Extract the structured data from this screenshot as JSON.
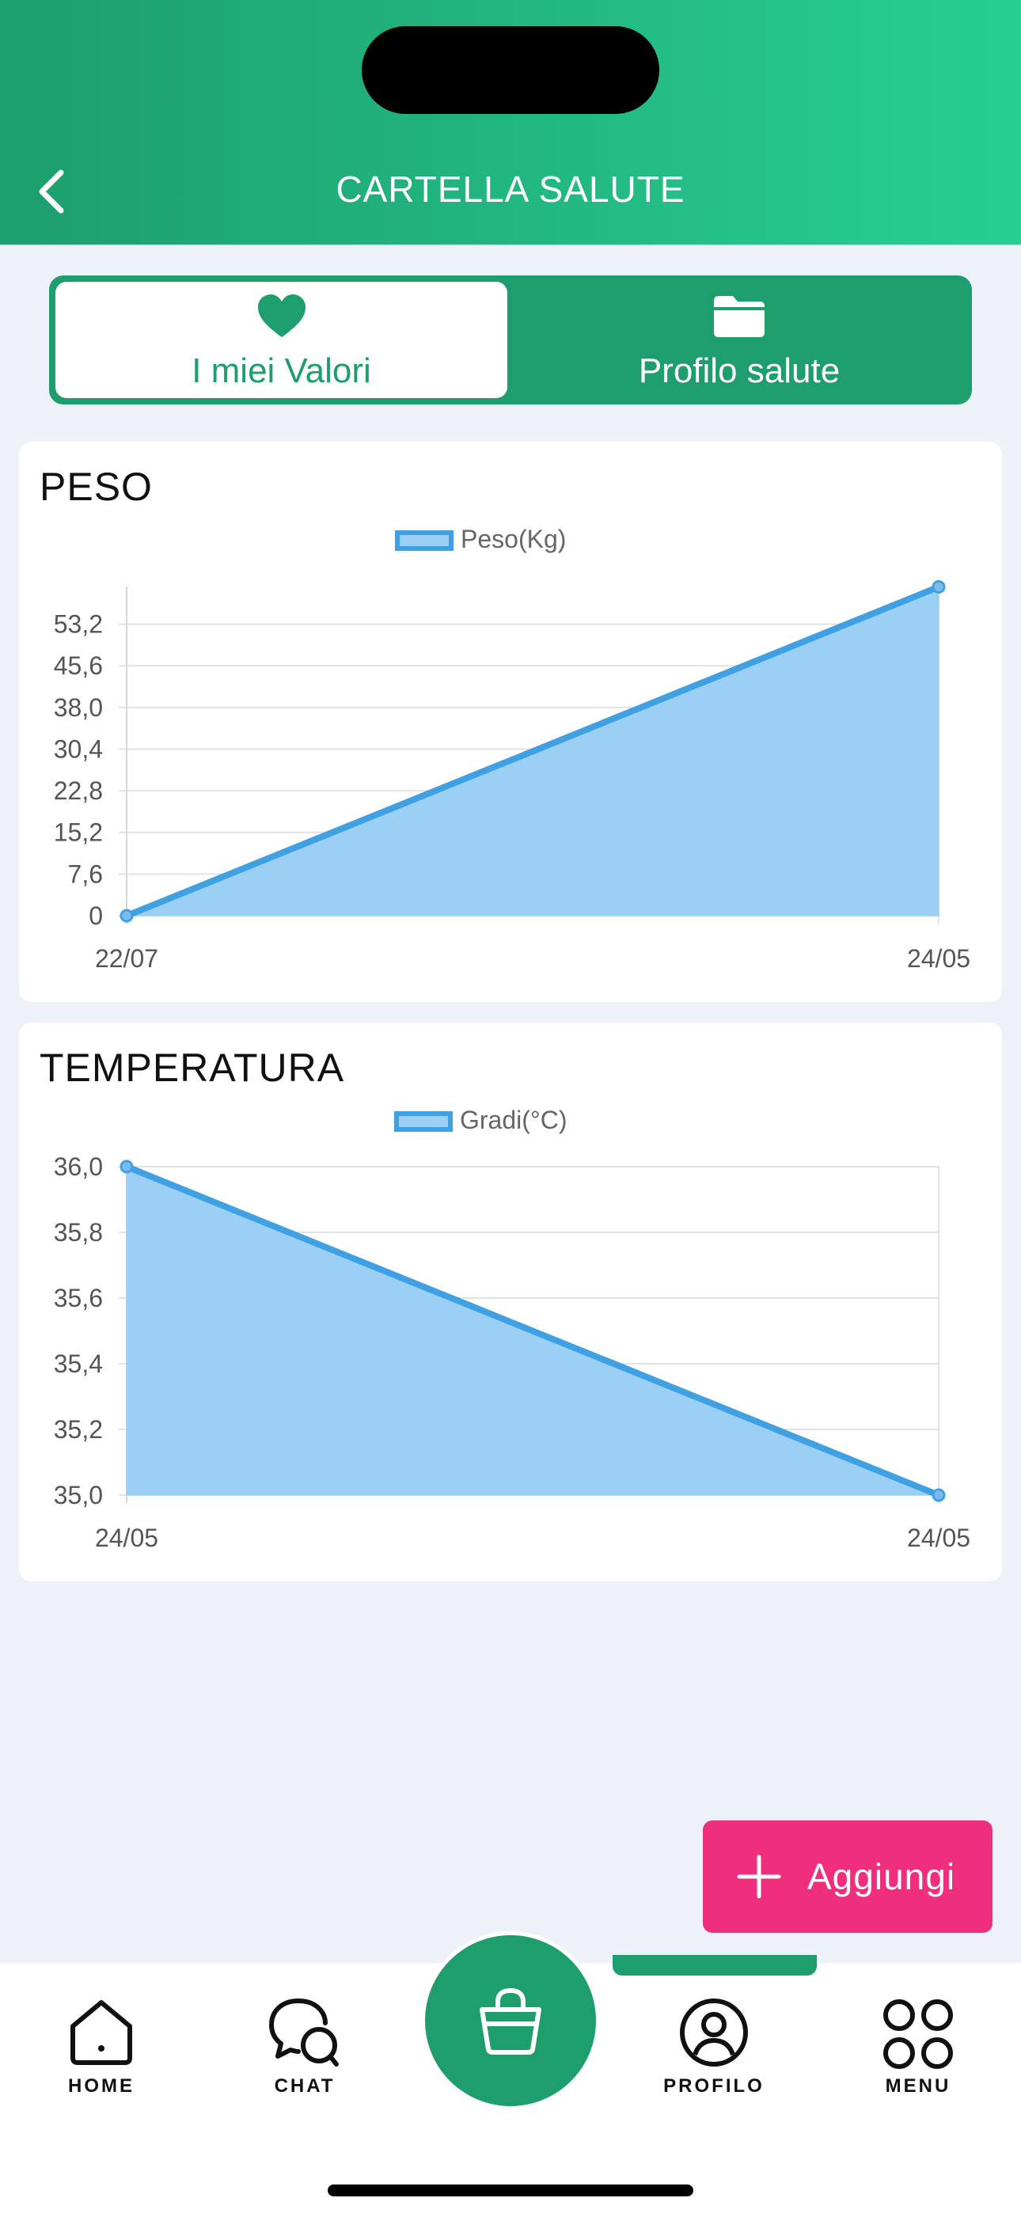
{
  "header": {
    "title": "CARTELLA SALUTE"
  },
  "segments": [
    {
      "label": "I miei Valori",
      "icon": "heart-icon",
      "active": true
    },
    {
      "label": "Profilo salute",
      "icon": "folder-icon",
      "active": false
    }
  ],
  "colors": {
    "brand_green": "#1e9e6c",
    "accent_pink": "#ef2f7d",
    "series_line": "#3fa0e4",
    "series_fill": "#9bcff3"
  },
  "cards": {
    "peso": {
      "title": "PESO"
    },
    "temperatura": {
      "title": "TEMPERATURA"
    }
  },
  "chart_data": [
    {
      "type": "area",
      "title": "PESO",
      "x": [
        "22/07",
        "24/05"
      ],
      "series": [
        {
          "name": "Peso(Kg)",
          "values": [
            0,
            60
          ]
        }
      ],
      "yticks": [
        "0",
        "7,6",
        "15,2",
        "22,8",
        "30,4",
        "38,0",
        "45,6",
        "53,2"
      ],
      "ylim": [
        0,
        60
      ],
      "legend": "top-center",
      "grid": true
    },
    {
      "type": "area",
      "title": "TEMPERATURA",
      "x": [
        "24/05",
        "24/05"
      ],
      "series": [
        {
          "name": "Gradi(°C)",
          "values": [
            36.0,
            35.0
          ]
        }
      ],
      "yticks": [
        "35,0",
        "35,2",
        "35,4",
        "35,6",
        "35,8",
        "36,0"
      ],
      "ylim": [
        35.0,
        36.0
      ],
      "legend": "top-center",
      "grid": true
    }
  ],
  "fab": {
    "label": "Aggiungi",
    "icon": "plus-icon"
  },
  "tabbar": {
    "items": [
      {
        "label": "HOME",
        "icon": "home-icon"
      },
      {
        "label": "CHAT",
        "icon": "chat-icon"
      },
      {
        "label": "",
        "icon": "shopping-bag-icon"
      },
      {
        "label": "PROFILO",
        "icon": "profile-icon",
        "active": true
      },
      {
        "label": "MENU",
        "icon": "menu-grid-icon"
      }
    ]
  }
}
